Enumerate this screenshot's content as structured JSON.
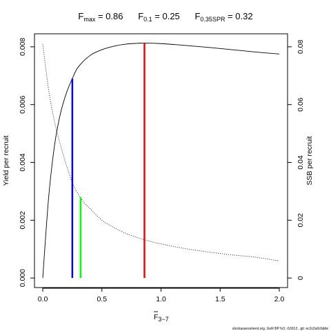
{
  "chart_data": {
    "type": "line",
    "title_parts": [
      {
        "name": "F",
        "sub": "max",
        "value": "0.86"
      },
      {
        "name": "F",
        "sub": "0.1",
        "value": "0.25"
      },
      {
        "name": "F",
        "sub": "0.35SPR",
        "value": "0.32"
      }
    ],
    "xlabel": "F",
    "xlabel_sub": "3−7",
    "ylabel_left": "Yield per recruit",
    "ylabel_right": "SSB per recruit",
    "xlim": [
      -0.07,
      2.07
    ],
    "ylim_left": [
      -0.00033,
      0.00845
    ],
    "ylim_right": [
      -0.0033,
      0.0845
    ],
    "x_ticks": [
      {
        "value": 0,
        "label": "0.0"
      },
      {
        "value": 0.5,
        "label": "0.5"
      },
      {
        "value": 1.0,
        "label": "1.0"
      },
      {
        "value": 1.5,
        "label": "1.5"
      },
      {
        "value": 2.0,
        "label": "2.0"
      }
    ],
    "y_ticks_left": [
      {
        "value": 0,
        "label": "0.000"
      },
      {
        "value": 0.002,
        "label": "0.002"
      },
      {
        "value": 0.004,
        "label": "0.004"
      },
      {
        "value": 0.006,
        "label": "0.006"
      },
      {
        "value": 0.008,
        "label": "0.008"
      }
    ],
    "y_ticks_right": [
      {
        "value": 0,
        "label": "0"
      },
      {
        "value": 0.02,
        "label": "0.02"
      },
      {
        "value": 0.04,
        "label": "0.04"
      },
      {
        "value": 0.06,
        "label": "0.06"
      },
      {
        "value": 0.08,
        "label": "0.08"
      }
    ],
    "series": [
      {
        "axis": "left",
        "style": "solid",
        "color": "#000000",
        "points": [
          [
            0,
            0
          ],
          [
            0.05,
            0.0028
          ],
          [
            0.1,
            0.0046
          ],
          [
            0.15,
            0.0057
          ],
          [
            0.2,
            0.0064
          ],
          [
            0.25,
            0.0069
          ],
          [
            0.3,
            0.0073
          ],
          [
            0.4,
            0.0077
          ],
          [
            0.5,
            0.0079
          ],
          [
            0.6,
            0.00802
          ],
          [
            0.7,
            0.00809
          ],
          [
            0.8,
            0.00812
          ],
          [
            0.86,
            0.00813
          ],
          [
            1.0,
            0.00811
          ],
          [
            1.2,
            0.00805
          ],
          [
            1.4,
            0.00798
          ],
          [
            1.6,
            0.0079
          ],
          [
            1.8,
            0.00782
          ],
          [
            2.0,
            0.00775
          ]
        ]
      },
      {
        "axis": "right",
        "style": "dotted",
        "color": "#000000",
        "points": [
          [
            0,
            0.081
          ],
          [
            0.05,
            0.065
          ],
          [
            0.1,
            0.054
          ],
          [
            0.15,
            0.046
          ],
          [
            0.2,
            0.039
          ],
          [
            0.25,
            0.033
          ],
          [
            0.3,
            0.029
          ],
          [
            0.35,
            0.026
          ],
          [
            0.4,
            0.024
          ],
          [
            0.5,
            0.02
          ],
          [
            0.6,
            0.0175
          ],
          [
            0.7,
            0.0155
          ],
          [
            0.8,
            0.014
          ],
          [
            0.9,
            0.0128
          ],
          [
            1.0,
            0.0118
          ],
          [
            1.2,
            0.0102
          ],
          [
            1.4,
            0.009
          ],
          [
            1.6,
            0.008
          ],
          [
            1.8,
            0.0072
          ],
          [
            2.0,
            0.0059
          ]
        ]
      }
    ],
    "reference_lines": [
      {
        "label": "Fmax",
        "x": 0.86,
        "axis": "left",
        "y_top": 0.00813,
        "color": "#ff0000"
      },
      {
        "label": "F0.1",
        "x": 0.25,
        "axis": "left",
        "y_top": 0.0069,
        "color": "#0000ff"
      },
      {
        "label": "F0.35SPR",
        "x": 0.32,
        "axis": "right",
        "y_top": 0.028,
        "color": "#00ff00"
      }
    ]
  },
  "footer": "stockassessment.org, GoR BP fv3, r16913 , git: ec2c2a0c6dde"
}
